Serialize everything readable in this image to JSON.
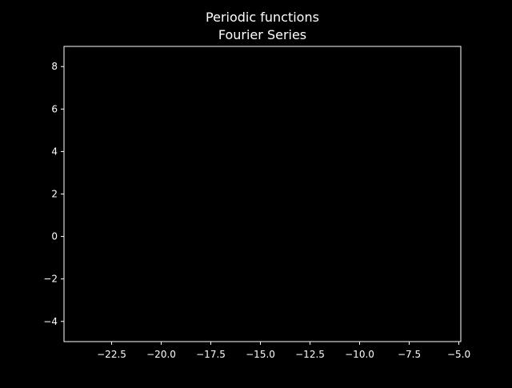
{
  "chart_data": {
    "type": "line",
    "title_line1": "Periodic functions",
    "title_line2": "Fourier Series",
    "xlabel": "",
    "ylabel": "",
    "xlim": [
      -24.9,
      -4.9
    ],
    "ylim": [
      -4.95,
      8.95
    ],
    "x_ticks": [
      -22.5,
      -20.0,
      -17.5,
      -15.0,
      -12.5,
      -10.0,
      -7.5,
      -5.0
    ],
    "x_tick_labels": [
      "−22.5",
      "−20.0",
      "−17.5",
      "−15.0",
      "−12.5",
      "−10.0",
      "−7.5",
      "−5.0"
    ],
    "y_ticks": [
      -4,
      -2,
      0,
      2,
      4,
      6,
      8
    ],
    "y_tick_labels": [
      "−4",
      "−2",
      "0",
      "2",
      "4",
      "6",
      "8"
    ],
    "series": [],
    "grid": false,
    "colors": {
      "background": "#000000",
      "axes": "#ffffff",
      "text": "#ffffff"
    }
  }
}
